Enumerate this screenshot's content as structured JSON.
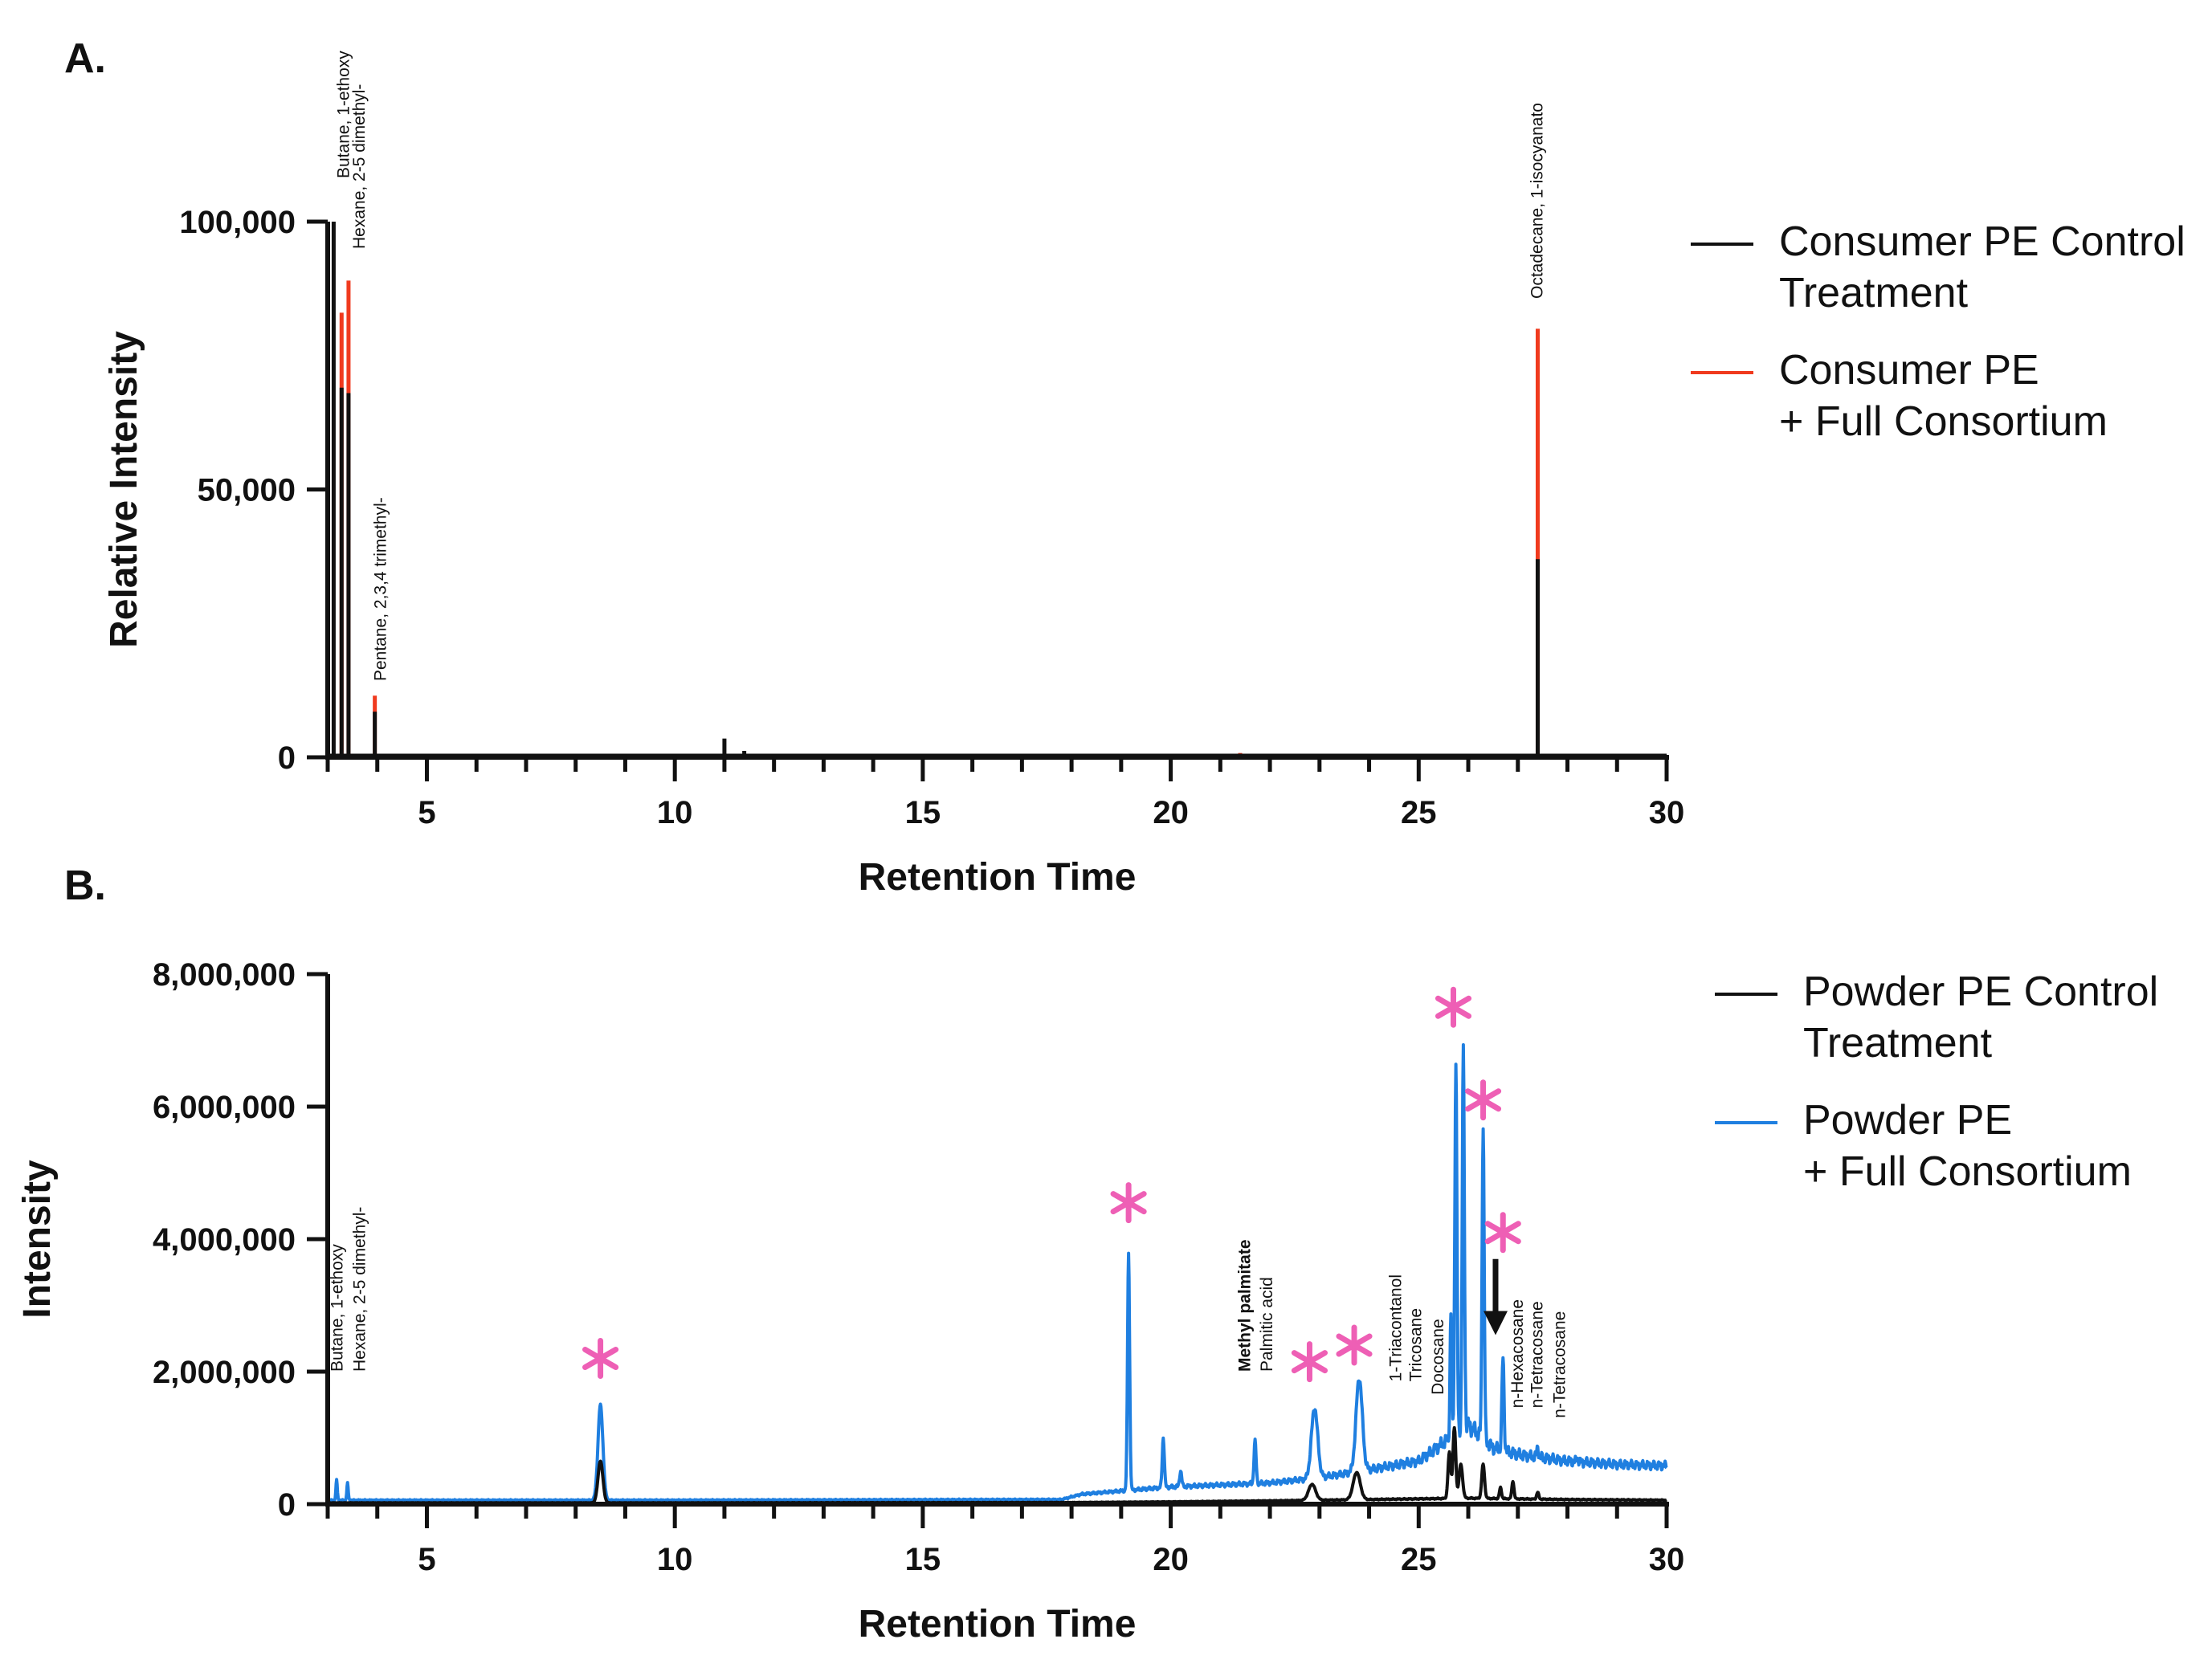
{
  "panels": {
    "a": {
      "letter": "A."
    },
    "b": {
      "letter": "B."
    }
  },
  "colors": {
    "control": "#111111",
    "consortium_a": "#f03a1e",
    "consortium_b": "#1f7fe0",
    "asterisk": "#ee5fb5"
  },
  "chart_data": [
    {
      "id": "panel-a",
      "type": "line",
      "title": "A.",
      "xlabel": "Retention Time",
      "ylabel": "Relative Intensity",
      "xlim": [
        3,
        30
      ],
      "ylim": [
        0,
        100000
      ],
      "xticks": [
        5,
        10,
        15,
        20,
        25,
        30
      ],
      "yticks": [
        0,
        50000,
        100000
      ],
      "ytick_labels": [
        "0",
        "50,000",
        "100,000"
      ],
      "legend_position": "right",
      "series": [
        {
          "name": "Consumer PE Control Treatment",
          "legend_lines": [
            "Consumer PE Control",
            "Treatment"
          ],
          "color": "#111111",
          "peaks": [
            {
              "x": 3.12,
              "y": 100000
            },
            {
              "x": 3.28,
              "y": 69000
            },
            {
              "x": 3.42,
              "y": 68000
            },
            {
              "x": 3.95,
              "y": 8500
            },
            {
              "x": 11.0,
              "y": 3500
            },
            {
              "x": 11.4,
              "y": 1200
            },
            {
              "x": 27.4,
              "y": 37000
            }
          ]
        },
        {
          "name": "Consumer PE + Full Consortium",
          "legend_lines": [
            "Consumer PE",
            "+ Full Consortium"
          ],
          "color": "#f03a1e",
          "peaks": [
            {
              "x": 3.28,
              "y": 83000
            },
            {
              "x": 3.42,
              "y": 89000
            },
            {
              "x": 3.95,
              "y": 11500
            },
            {
              "x": 21.4,
              "y": 800
            },
            {
              "x": 27.4,
              "y": 80000
            }
          ]
        }
      ],
      "annotations": [
        {
          "text": "Butane, 1-ethoxy",
          "x": 3.12
        },
        {
          "text": "Hexane, 2-5 dimethyl-",
          "x": 3.42
        },
        {
          "text": "Pentane, 2,3,4 trimethyl-",
          "x": 3.95
        },
        {
          "text": "Octadecane, 1-isocyanato",
          "x": 27.4
        }
      ]
    },
    {
      "id": "panel-b",
      "type": "line",
      "title": "B.",
      "xlabel": "Retention Time",
      "ylabel": "Intensity",
      "xlim": [
        3,
        30
      ],
      "ylim": [
        0,
        8000000
      ],
      "xticks": [
        5,
        10,
        15,
        20,
        25,
        30
      ],
      "yticks": [
        0,
        2000000,
        4000000,
        6000000,
        8000000
      ],
      "ytick_labels": [
        "0",
        "2,000,000",
        "4,000,000",
        "6,000,000",
        "8,000,000"
      ],
      "legend_position": "right",
      "series": [
        {
          "name": "Powder PE Control Treatment",
          "legend_lines": [
            "Powder PE Control",
            "Treatment"
          ],
          "color": "#111111",
          "baseline": [
            [
              3,
              20000
            ],
            [
              10,
              20000
            ],
            [
              18,
              25000
            ],
            [
              20,
              35000
            ],
            [
              22,
              50000
            ],
            [
              24,
              70000
            ],
            [
              26,
              90000
            ],
            [
              28,
              70000
            ],
            [
              30,
              60000
            ]
          ],
          "peaks": [
            {
              "x": 8.5,
              "y": 650000,
              "w": 0.07
            },
            {
              "x": 22.85,
              "y": 300000,
              "w": 0.1
            },
            {
              "x": 23.75,
              "y": 480000,
              "w": 0.1
            },
            {
              "x": 25.62,
              "y": 780000,
              "w": 0.04
            },
            {
              "x": 25.72,
              "y": 1150000,
              "w": 0.04
            },
            {
              "x": 25.85,
              "y": 600000,
              "w": 0.05
            },
            {
              "x": 26.3,
              "y": 600000,
              "w": 0.04
            },
            {
              "x": 26.65,
              "y": 250000,
              "w": 0.03
            },
            {
              "x": 26.9,
              "y": 350000,
              "w": 0.03
            },
            {
              "x": 27.4,
              "y": 180000,
              "w": 0.03
            }
          ]
        },
        {
          "name": "Powder PE + Full Consortium",
          "legend_lines": [
            "Powder PE",
            "+ Full Consortium"
          ],
          "color": "#1f7fe0",
          "baseline": [
            [
              3,
              60000
            ],
            [
              10,
              60000
            ],
            [
              17.8,
              70000
            ],
            [
              18.2,
              150000
            ],
            [
              19,
              200000
            ],
            [
              20,
              260000
            ],
            [
              22,
              320000
            ],
            [
              23,
              400000
            ],
            [
              24,
              520000
            ],
            [
              25,
              650000
            ],
            [
              26,
              1200000
            ],
            [
              26.5,
              850000
            ],
            [
              27,
              750000
            ],
            [
              28,
              650000
            ],
            [
              29,
              600000
            ],
            [
              30,
              580000
            ]
          ],
          "peaks": [
            {
              "x": 3.18,
              "y": 370000,
              "w": 0.02
            },
            {
              "x": 3.4,
              "y": 320000,
              "w": 0.02
            },
            {
              "x": 8.5,
              "y": 1500000,
              "w": 0.07
            },
            {
              "x": 19.15,
              "y": 3800000,
              "w": 0.03
            },
            {
              "x": 19.85,
              "y": 1000000,
              "w": 0.03
            },
            {
              "x": 20.2,
              "y": 500000,
              "w": 0.03
            },
            {
              "x": 21.7,
              "y": 950000,
              "w": 0.03
            },
            {
              "x": 22.9,
              "y": 1450000,
              "w": 0.09
            },
            {
              "x": 23.8,
              "y": 1900000,
              "w": 0.09
            },
            {
              "x": 25.65,
              "y": 2900000,
              "w": 0.025
            },
            {
              "x": 25.75,
              "y": 6700000,
              "w": 0.03
            },
            {
              "x": 25.9,
              "y": 6800000,
              "w": 0.03
            },
            {
              "x": 26.3,
              "y": 5700000,
              "w": 0.03
            },
            {
              "x": 26.7,
              "y": 2200000,
              "w": 0.03
            },
            {
              "x": 27.4,
              "y": 850000,
              "w": 0.025
            },
            {
              "x": 28.2,
              "y": 700000,
              "w": 0.025
            }
          ]
        }
      ],
      "markers": [
        {
          "symbol": "*",
          "x": 8.5,
          "y": 2200000
        },
        {
          "symbol": "*",
          "x": 19.15,
          "y": 4550000
        },
        {
          "symbol": "*",
          "x": 22.8,
          "y": 2150000
        },
        {
          "symbol": "*",
          "x": 23.7,
          "y": 2400000
        },
        {
          "symbol": "*",
          "x": 25.7,
          "y": 7500000
        },
        {
          "symbol": "*",
          "x": 26.3,
          "y": 6100000
        },
        {
          "symbol": "*",
          "x": 26.7,
          "y": 4100000
        }
      ],
      "arrow": {
        "x": 26.55,
        "y_from": 3700000,
        "y_to": 2600000
      },
      "annotations": [
        {
          "text": "Butane, 1-ethoxy",
          "x": 3.3,
          "y": 2000000,
          "bold": false
        },
        {
          "text": "Hexane, 2-5 dimethyl-",
          "x": 3.75,
          "y": 2000000,
          "bold": false
        },
        {
          "text": "Methyl palmitate",
          "x": 21.6,
          "y": 2000000,
          "bold": true
        },
        {
          "text": "Palmitic acid",
          "x": 22.05,
          "y": 2000000,
          "bold": false
        },
        {
          "text": "1-Triacontanol",
          "x": 24.65,
          "y": 1850000,
          "bold": false
        },
        {
          "text": "Tricosane",
          "x": 25.05,
          "y": 1850000,
          "bold": false
        },
        {
          "text": "Docosane",
          "x": 25.5,
          "y": 1650000,
          "bold": false
        },
        {
          "text": "n-Hexacosane",
          "x": 27.1,
          "y": 1450000,
          "bold": false
        },
        {
          "text": "n-Tetracosane",
          "x": 27.5,
          "y": 1450000,
          "bold": false
        },
        {
          "text": "n-Tetracosane",
          "x": 27.95,
          "y": 1300000,
          "bold": false
        }
      ]
    }
  ]
}
